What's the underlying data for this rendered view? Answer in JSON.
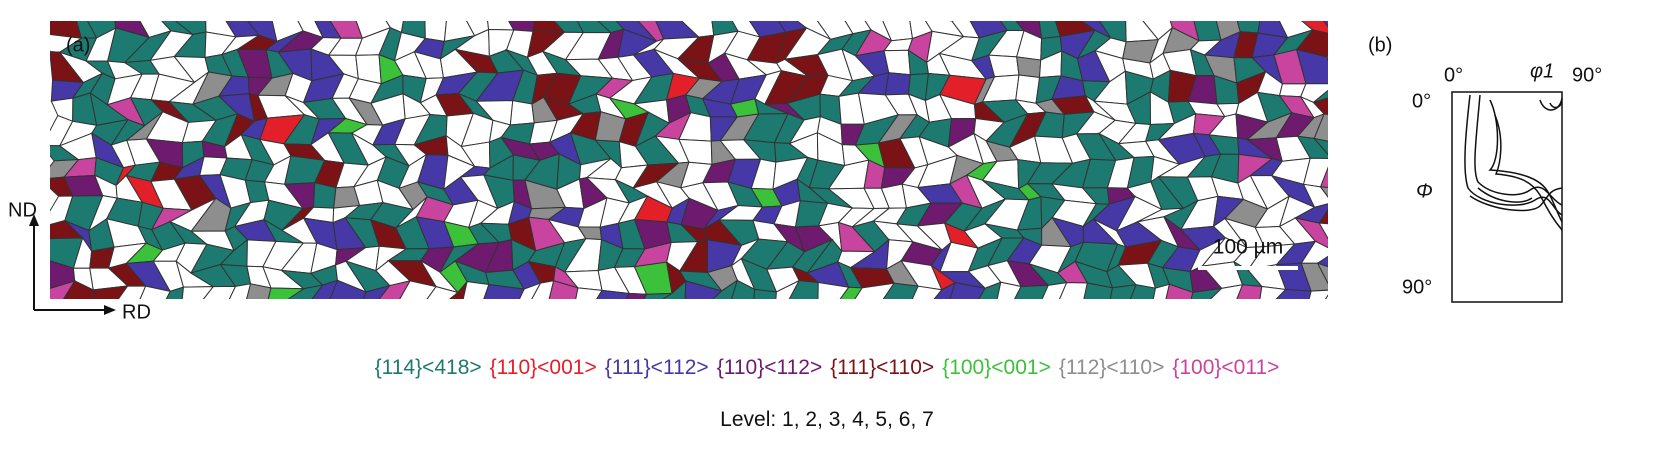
{
  "panel_a": {
    "label": "(a)",
    "axis_nd": "ND",
    "axis_rd": "RD",
    "scale_bar": "100 µm"
  },
  "panel_b": {
    "label": "(b)",
    "phi1_start": "0°",
    "phi1_label": "φ1",
    "phi1_end": "90°",
    "Phi_start": "0°",
    "Phi_label": "Φ",
    "Phi_end": "90°"
  },
  "legend": [
    {
      "text": "{114}<418>",
      "color": "#1d7a70"
    },
    {
      "text": "{110}<001>",
      "color": "#e3202a"
    },
    {
      "text": "{111}<112>",
      "color": "#4638a6"
    },
    {
      "text": "{110}<112>",
      "color": "#6e1a6e"
    },
    {
      "text": "{111}<110>",
      "color": "#7a1216"
    },
    {
      "text": "{100}<001>",
      "color": "#3cc23a"
    },
    {
      "text": "{112}<110>",
      "color": "#8e8e8e"
    },
    {
      "text": "{100}<011>",
      "color": "#c9449f"
    }
  ],
  "levels": "Level: 1, 2, 3, 4, 5, 6, 7"
}
